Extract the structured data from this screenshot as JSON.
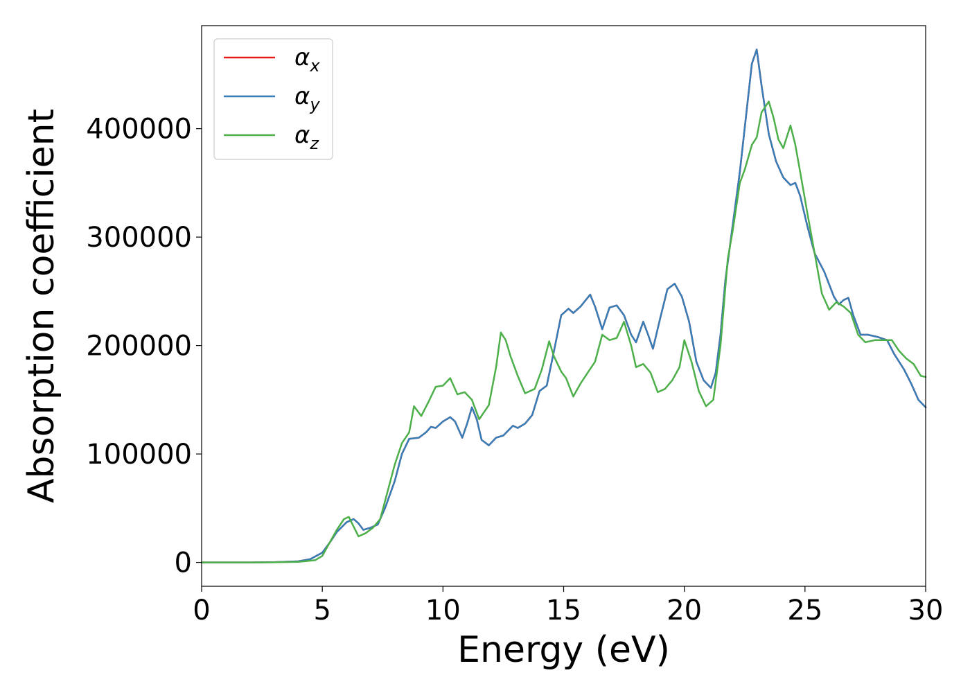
{
  "chart_data": {
    "type": "line",
    "xlabel": "Energy (eV)",
    "ylabel": "Absorption coefficient",
    "xlim": [
      0,
      30
    ],
    "ylim": [
      -22000,
      495000
    ],
    "x_ticks": [
      0,
      5,
      10,
      15,
      20,
      25,
      30
    ],
    "y_ticks": [
      0,
      100000,
      200000,
      300000,
      400000
    ],
    "grid": false,
    "legend_position": "upper-left",
    "series": [
      {
        "name": "α_x",
        "symbol": "α",
        "subscript": "x",
        "color": "#e41a1c",
        "points": [
          [
            0,
            0
          ],
          [
            1,
            0
          ],
          [
            2,
            0
          ],
          [
            3,
            200
          ],
          [
            4,
            1000
          ],
          [
            4.5,
            3000
          ],
          [
            5,
            9000
          ],
          [
            5.3,
            18000
          ],
          [
            5.6,
            28000
          ],
          [
            6,
            37000
          ],
          [
            6.3,
            40000
          ],
          [
            6.5,
            36000
          ],
          [
            6.7,
            30000
          ],
          [
            7,
            32000
          ],
          [
            7.3,
            35000
          ],
          [
            7.6,
            50000
          ],
          [
            8,
            75000
          ],
          [
            8.3,
            100000
          ],
          [
            8.6,
            114000
          ],
          [
            9,
            115000
          ],
          [
            9.3,
            120000
          ],
          [
            9.5,
            125000
          ],
          [
            9.7,
            124000
          ],
          [
            10,
            130000
          ],
          [
            10.3,
            134000
          ],
          [
            10.5,
            130000
          ],
          [
            10.8,
            115000
          ],
          [
            11,
            128000
          ],
          [
            11.2,
            143000
          ],
          [
            11.4,
            132000
          ],
          [
            11.6,
            113000
          ],
          [
            11.9,
            108000
          ],
          [
            12.2,
            115000
          ],
          [
            12.5,
            117000
          ],
          [
            12.9,
            126000
          ],
          [
            13.1,
            124000
          ],
          [
            13.4,
            128000
          ],
          [
            13.7,
            136000
          ],
          [
            14,
            158000
          ],
          [
            14.3,
            163000
          ],
          [
            14.6,
            195000
          ],
          [
            14.9,
            228000
          ],
          [
            15.2,
            234000
          ],
          [
            15.4,
            230000
          ],
          [
            15.7,
            236000
          ],
          [
            16.1,
            247000
          ],
          [
            16.3,
            236000
          ],
          [
            16.6,
            215000
          ],
          [
            16.9,
            235000
          ],
          [
            17.2,
            237000
          ],
          [
            17.5,
            228000
          ],
          [
            17.8,
            210000
          ],
          [
            18,
            203000
          ],
          [
            18.3,
            222000
          ],
          [
            18.5,
            210000
          ],
          [
            18.7,
            197000
          ],
          [
            19,
            225000
          ],
          [
            19.3,
            252000
          ],
          [
            19.6,
            257000
          ],
          [
            19.9,
            245000
          ],
          [
            20.2,
            222000
          ],
          [
            20.5,
            185000
          ],
          [
            20.8,
            168000
          ],
          [
            21.1,
            161000
          ],
          [
            21.3,
            175000
          ],
          [
            21.5,
            210000
          ],
          [
            21.7,
            260000
          ],
          [
            22,
            310000
          ],
          [
            22.3,
            360000
          ],
          [
            22.6,
            420000
          ],
          [
            22.8,
            460000
          ],
          [
            23,
            473000
          ],
          [
            23.2,
            440000
          ],
          [
            23.5,
            395000
          ],
          [
            23.8,
            370000
          ],
          [
            24.1,
            355000
          ],
          [
            24.4,
            348000
          ],
          [
            24.6,
            350000
          ],
          [
            24.8,
            338000
          ],
          [
            25.1,
            310000
          ],
          [
            25.4,
            285000
          ],
          [
            25.8,
            268000
          ],
          [
            26.2,
            245000
          ],
          [
            26.4,
            238000
          ],
          [
            26.6,
            242000
          ],
          [
            26.8,
            244000
          ],
          [
            27,
            228000
          ],
          [
            27.3,
            210000
          ],
          [
            27.6,
            210000
          ],
          [
            28,
            208000
          ],
          [
            28.4,
            205000
          ],
          [
            28.7,
            192000
          ],
          [
            29.1,
            178000
          ],
          [
            29.4,
            165000
          ],
          [
            29.7,
            150000
          ],
          [
            30,
            143000
          ]
        ]
      },
      {
        "name": "α_y",
        "symbol": "α",
        "subscript": "y",
        "color": "#377eb8",
        "points": [
          [
            0,
            0
          ],
          [
            1,
            0
          ],
          [
            2,
            0
          ],
          [
            3,
            200
          ],
          [
            4,
            1000
          ],
          [
            4.5,
            3000
          ],
          [
            5,
            9000
          ],
          [
            5.3,
            18000
          ],
          [
            5.6,
            28000
          ],
          [
            6,
            37000
          ],
          [
            6.3,
            40000
          ],
          [
            6.5,
            36000
          ],
          [
            6.7,
            30000
          ],
          [
            7,
            32000
          ],
          [
            7.3,
            35000
          ],
          [
            7.6,
            50000
          ],
          [
            8,
            75000
          ],
          [
            8.3,
            100000
          ],
          [
            8.6,
            114000
          ],
          [
            9,
            115000
          ],
          [
            9.3,
            120000
          ],
          [
            9.5,
            125000
          ],
          [
            9.7,
            124000
          ],
          [
            10,
            130000
          ],
          [
            10.3,
            134000
          ],
          [
            10.5,
            130000
          ],
          [
            10.8,
            115000
          ],
          [
            11,
            128000
          ],
          [
            11.2,
            143000
          ],
          [
            11.4,
            132000
          ],
          [
            11.6,
            113000
          ],
          [
            11.9,
            108000
          ],
          [
            12.2,
            115000
          ],
          [
            12.5,
            117000
          ],
          [
            12.9,
            126000
          ],
          [
            13.1,
            124000
          ],
          [
            13.4,
            128000
          ],
          [
            13.7,
            136000
          ],
          [
            14,
            158000
          ],
          [
            14.3,
            163000
          ],
          [
            14.6,
            195000
          ],
          [
            14.9,
            228000
          ],
          [
            15.2,
            234000
          ],
          [
            15.4,
            230000
          ],
          [
            15.7,
            236000
          ],
          [
            16.1,
            247000
          ],
          [
            16.3,
            236000
          ],
          [
            16.6,
            215000
          ],
          [
            16.9,
            235000
          ],
          [
            17.2,
            237000
          ],
          [
            17.5,
            228000
          ],
          [
            17.8,
            210000
          ],
          [
            18,
            203000
          ],
          [
            18.3,
            222000
          ],
          [
            18.5,
            210000
          ],
          [
            18.7,
            197000
          ],
          [
            19,
            225000
          ],
          [
            19.3,
            252000
          ],
          [
            19.6,
            257000
          ],
          [
            19.9,
            245000
          ],
          [
            20.2,
            222000
          ],
          [
            20.5,
            185000
          ],
          [
            20.8,
            168000
          ],
          [
            21.1,
            161000
          ],
          [
            21.3,
            175000
          ],
          [
            21.5,
            210000
          ],
          [
            21.7,
            260000
          ],
          [
            22,
            310000
          ],
          [
            22.3,
            360000
          ],
          [
            22.6,
            420000
          ],
          [
            22.8,
            460000
          ],
          [
            23,
            473000
          ],
          [
            23.2,
            440000
          ],
          [
            23.5,
            395000
          ],
          [
            23.8,
            370000
          ],
          [
            24.1,
            355000
          ],
          [
            24.4,
            348000
          ],
          [
            24.6,
            350000
          ],
          [
            24.8,
            338000
          ],
          [
            25.1,
            310000
          ],
          [
            25.4,
            285000
          ],
          [
            25.8,
            268000
          ],
          [
            26.2,
            245000
          ],
          [
            26.4,
            238000
          ],
          [
            26.6,
            242000
          ],
          [
            26.8,
            244000
          ],
          [
            27,
            228000
          ],
          [
            27.3,
            210000
          ],
          [
            27.6,
            210000
          ],
          [
            28,
            208000
          ],
          [
            28.4,
            205000
          ],
          [
            28.7,
            192000
          ],
          [
            29.1,
            178000
          ],
          [
            29.4,
            165000
          ],
          [
            29.7,
            150000
          ],
          [
            30,
            143000
          ]
        ]
      },
      {
        "name": "α_z",
        "symbol": "α",
        "subscript": "z",
        "color": "#4daf4a",
        "points": [
          [
            0,
            0
          ],
          [
            1,
            0
          ],
          [
            2,
            0
          ],
          [
            3,
            100
          ],
          [
            4,
            500
          ],
          [
            4.7,
            2000
          ],
          [
            5,
            6000
          ],
          [
            5.3,
            18000
          ],
          [
            5.6,
            30000
          ],
          [
            5.9,
            40000
          ],
          [
            6.1,
            42000
          ],
          [
            6.3,
            33000
          ],
          [
            6.5,
            24000
          ],
          [
            6.8,
            27000
          ],
          [
            7.1,
            32000
          ],
          [
            7.4,
            40000
          ],
          [
            7.7,
            65000
          ],
          [
            8,
            90000
          ],
          [
            8.3,
            110000
          ],
          [
            8.6,
            120000
          ],
          [
            8.8,
            144000
          ],
          [
            9.1,
            135000
          ],
          [
            9.4,
            148000
          ],
          [
            9.7,
            162000
          ],
          [
            10,
            163000
          ],
          [
            10.3,
            170000
          ],
          [
            10.6,
            155000
          ],
          [
            10.9,
            157000
          ],
          [
            11.2,
            150000
          ],
          [
            11.5,
            132000
          ],
          [
            11.9,
            145000
          ],
          [
            12.2,
            180000
          ],
          [
            12.4,
            212000
          ],
          [
            12.6,
            205000
          ],
          [
            12.8,
            190000
          ],
          [
            13.1,
            172000
          ],
          [
            13.4,
            156000
          ],
          [
            13.8,
            160000
          ],
          [
            14.1,
            178000
          ],
          [
            14.4,
            204000
          ],
          [
            14.6,
            190000
          ],
          [
            14.9,
            176000
          ],
          [
            15.1,
            170000
          ],
          [
            15.4,
            153000
          ],
          [
            15.7,
            165000
          ],
          [
            16,
            175000
          ],
          [
            16.3,
            185000
          ],
          [
            16.6,
            210000
          ],
          [
            16.9,
            205000
          ],
          [
            17.2,
            207000
          ],
          [
            17.5,
            222000
          ],
          [
            17.8,
            200000
          ],
          [
            18,
            180000
          ],
          [
            18.3,
            183000
          ],
          [
            18.6,
            175000
          ],
          [
            18.9,
            157000
          ],
          [
            19.2,
            160000
          ],
          [
            19.5,
            168000
          ],
          [
            19.8,
            180000
          ],
          [
            20,
            205000
          ],
          [
            20.3,
            185000
          ],
          [
            20.6,
            158000
          ],
          [
            20.9,
            144000
          ],
          [
            21.2,
            150000
          ],
          [
            21.5,
            200000
          ],
          [
            21.8,
            280000
          ],
          [
            22,
            305000
          ],
          [
            22.3,
            350000
          ],
          [
            22.5,
            362000
          ],
          [
            22.8,
            385000
          ],
          [
            23,
            392000
          ],
          [
            23.2,
            415000
          ],
          [
            23.5,
            425000
          ],
          [
            23.7,
            410000
          ],
          [
            23.9,
            390000
          ],
          [
            24.1,
            382000
          ],
          [
            24.4,
            403000
          ],
          [
            24.6,
            385000
          ],
          [
            24.8,
            360000
          ],
          [
            25.1,
            322000
          ],
          [
            25.4,
            285000
          ],
          [
            25.7,
            248000
          ],
          [
            26,
            233000
          ],
          [
            26.3,
            240000
          ],
          [
            26.6,
            236000
          ],
          [
            26.9,
            230000
          ],
          [
            27.2,
            210000
          ],
          [
            27.5,
            203000
          ],
          [
            27.9,
            205000
          ],
          [
            28.2,
            205000
          ],
          [
            28.6,
            205000
          ],
          [
            28.9,
            195000
          ],
          [
            29.2,
            188000
          ],
          [
            29.5,
            183000
          ],
          [
            29.8,
            172000
          ],
          [
            30,
            171000
          ]
        ]
      }
    ]
  }
}
